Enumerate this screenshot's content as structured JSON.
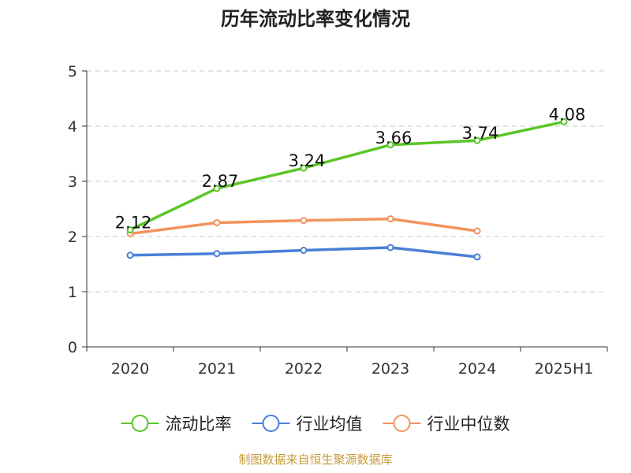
{
  "chart_data": {
    "type": "line",
    "title": "历年流动比率变化情况",
    "categories": [
      "2020",
      "2021",
      "2022",
      "2023",
      "2024",
      "2025H1"
    ],
    "ylim": [
      0,
      5
    ],
    "yticks": [
      0,
      1,
      2,
      3,
      4,
      5
    ],
    "grid": true,
    "legend_position": "bottom",
    "series": [
      {
        "name": "流动比率",
        "color": "#5ac626",
        "values": [
          2.12,
          2.87,
          3.24,
          3.66,
          3.74,
          4.08
        ],
        "labels": [
          "2.12",
          "2.87",
          "3.24",
          "3.66",
          "3.74",
          "4.08"
        ]
      },
      {
        "name": "行业均值",
        "color": "#4a7fd6",
        "values": [
          1.66,
          1.69,
          1.75,
          1.8,
          1.63,
          null
        ]
      },
      {
        "name": "行业中位数",
        "color": "#f2935c",
        "values": [
          2.05,
          2.25,
          2.29,
          2.32,
          2.1,
          null
        ]
      }
    ]
  },
  "footer": {
    "source": "制图数据来自恒生聚源数据库"
  }
}
